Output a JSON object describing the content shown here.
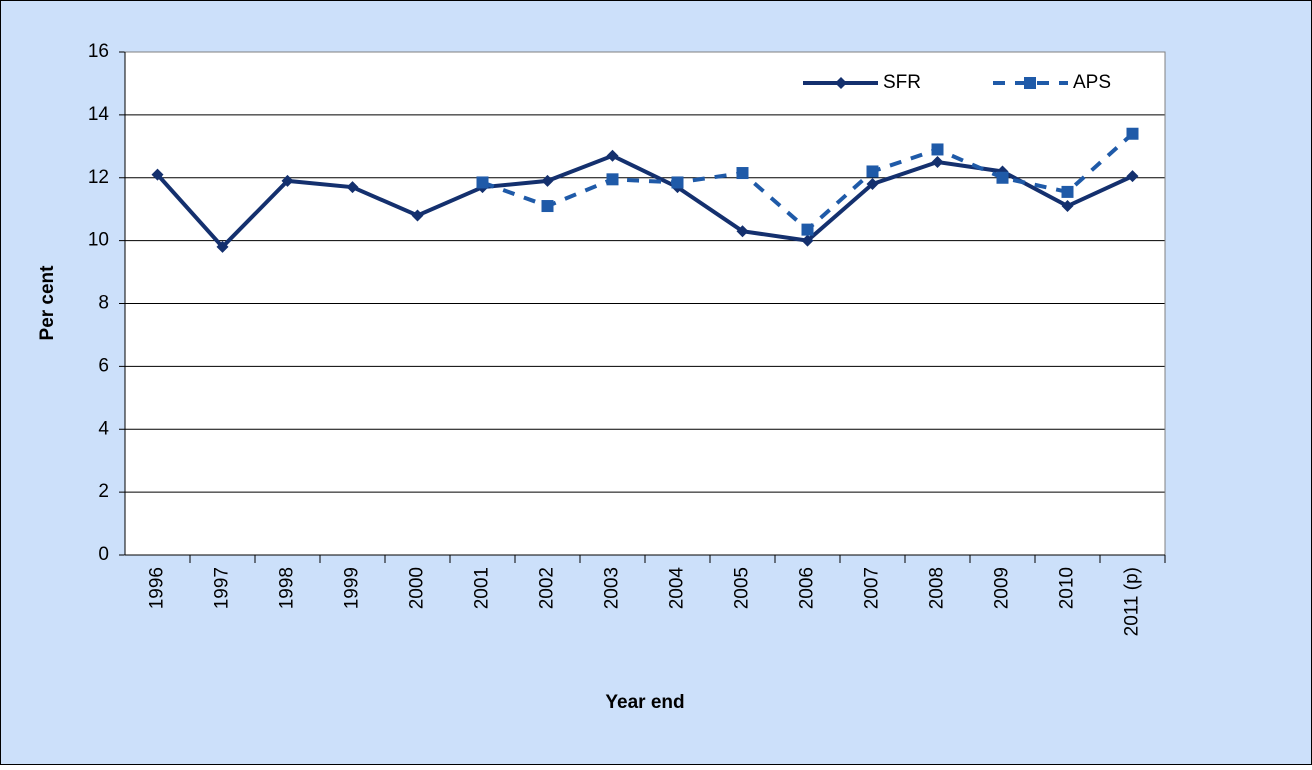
{
  "chart_data": {
    "type": "line",
    "x_label": "Year end",
    "y_label": "Per cent",
    "categories": [
      "1996",
      "1997",
      "1998",
      "1999",
      "2000",
      "2001",
      "2002",
      "2003",
      "2004",
      "2005",
      "2006",
      "2007",
      "2008",
      "2009",
      "2010",
      "2011 (p)"
    ],
    "series": [
      {
        "name": "SFR",
        "color": "#14306e",
        "dash": false,
        "marker": "diamond",
        "values": [
          12.1,
          9.8,
          11.9,
          11.7,
          10.8,
          11.7,
          11.9,
          12.7,
          11.7,
          10.3,
          10.0,
          11.8,
          12.5,
          12.2,
          11.1,
          12.05
        ]
      },
      {
        "name": "APS",
        "color": "#1f5aa8",
        "dash": true,
        "marker": "square",
        "values": [
          null,
          null,
          null,
          null,
          null,
          11.85,
          11.1,
          11.95,
          11.85,
          12.15,
          10.35,
          12.2,
          12.9,
          12.0,
          11.55,
          13.4
        ]
      }
    ],
    "ylim": [
      0,
      16
    ],
    "yticks": [
      0,
      2,
      4,
      6,
      8,
      10,
      12,
      14,
      16
    ],
    "grid": true,
    "legend": "top-right"
  }
}
